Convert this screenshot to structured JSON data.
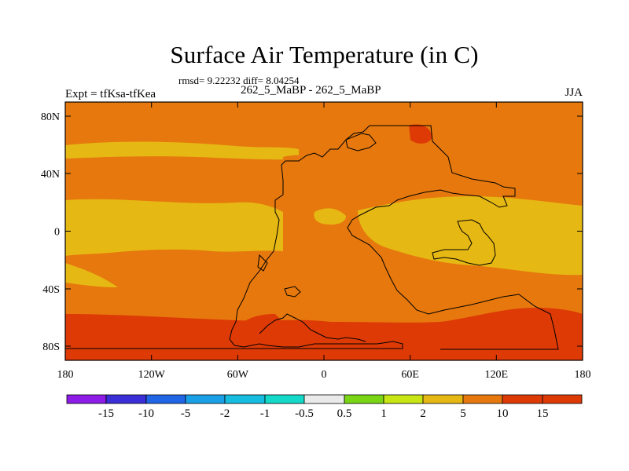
{
  "title": "Surface Air Temperature (in C)",
  "stats": "rmsd= 9.22232 diff= 8.04254",
  "experiment": "Expt = tfKsa-tfKea",
  "case": "262_5_MaBP - 262_5_MaBP",
  "season": "JJA",
  "axes": {
    "lon_ticks": [
      "180",
      "120W",
      "60W",
      "0",
      "60E",
      "120E",
      "180"
    ],
    "lat_ticks": [
      "80N",
      "40N",
      "0",
      "40S",
      "80S"
    ]
  },
  "colorbar": {
    "labels": [
      "-15",
      "-10",
      "-5",
      "-2",
      "-1",
      "-0.5",
      "0.5",
      "1",
      "2",
      "5",
      "10",
      "15"
    ],
    "colors": [
      "#8c1ce6",
      "#3a2fd6",
      "#1f65e6",
      "#1aa0e6",
      "#16bde0",
      "#14d9c8",
      "#eaeaea",
      "#7ad614",
      "#c8e614",
      "#e6b814",
      "#e6780d",
      "#de3a06"
    ]
  },
  "map_colors": {
    "band_ten": "#e6780d",
    "band_five": "#e6b814",
    "band_fifteen": "#de3a06",
    "coastline": "#000000"
  }
}
